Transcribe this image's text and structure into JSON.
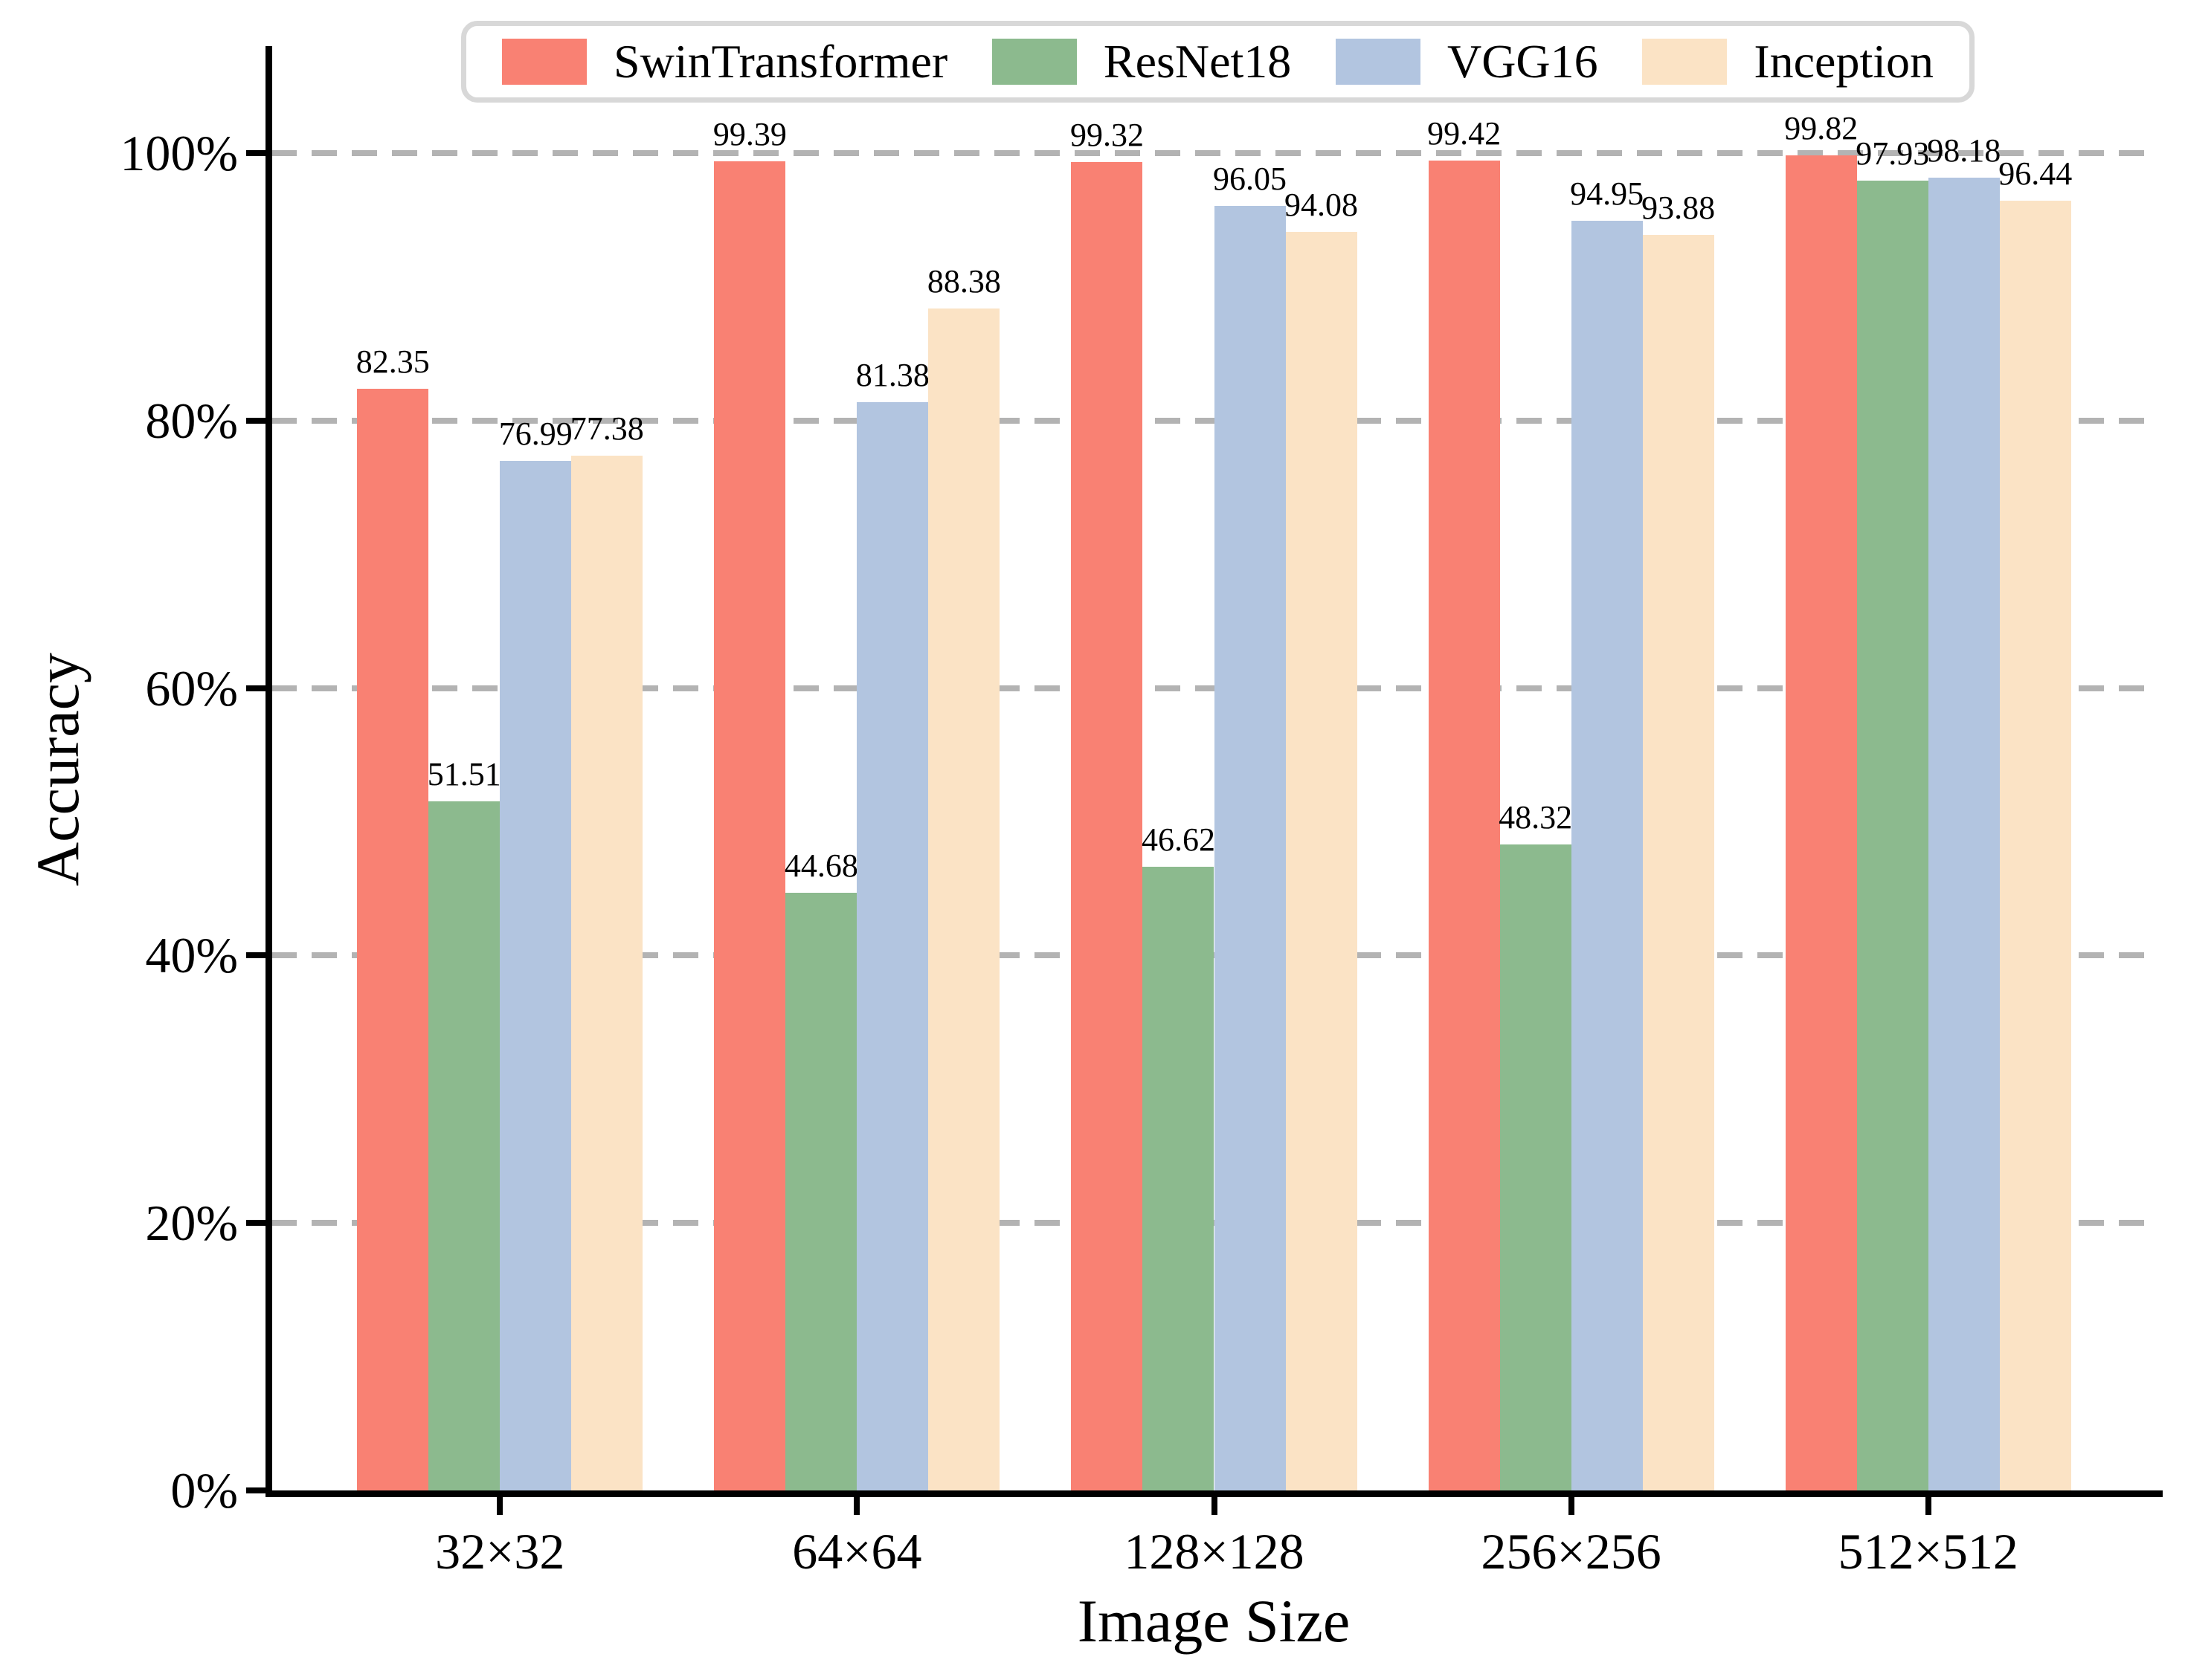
{
  "chart_data": {
    "type": "bar",
    "title": "",
    "xlabel": "Image Size",
    "ylabel": "Accuracy",
    "categories": [
      "32×32",
      "64×64",
      "128×128",
      "256×256",
      "512×512"
    ],
    "series": [
      {
        "name": "SwinTransformer",
        "color": "#F98173",
        "values": [
          82.35,
          99.39,
          99.32,
          99.42,
          99.82
        ]
      },
      {
        "name": "ResNet18",
        "color": "#8CBA8E",
        "values": [
          51.51,
          44.68,
          46.62,
          48.32,
          97.93
        ]
      },
      {
        "name": "VGG16",
        "color": "#B2C5E0",
        "values": [
          76.99,
          81.38,
          96.05,
          94.95,
          98.18
        ]
      },
      {
        "name": "Inception",
        "color": "#FBE3C5",
        "values": [
          77.38,
          88.38,
          94.08,
          93.88,
          96.44
        ]
      }
    ],
    "bar_value_labels": true,
    "y_ticks": [
      "0%",
      "20%",
      "40%",
      "60%",
      "80%",
      "100%"
    ],
    "y_tick_values": [
      0,
      20,
      40,
      60,
      80,
      100
    ],
    "ylim": [
      0,
      108
    ],
    "grid": "horizontal dashed",
    "grid_color": "#b3b3b3",
    "axis_color": "#000000",
    "legend_position": "top center",
    "legend_border_color": "#d8d8d8"
  }
}
